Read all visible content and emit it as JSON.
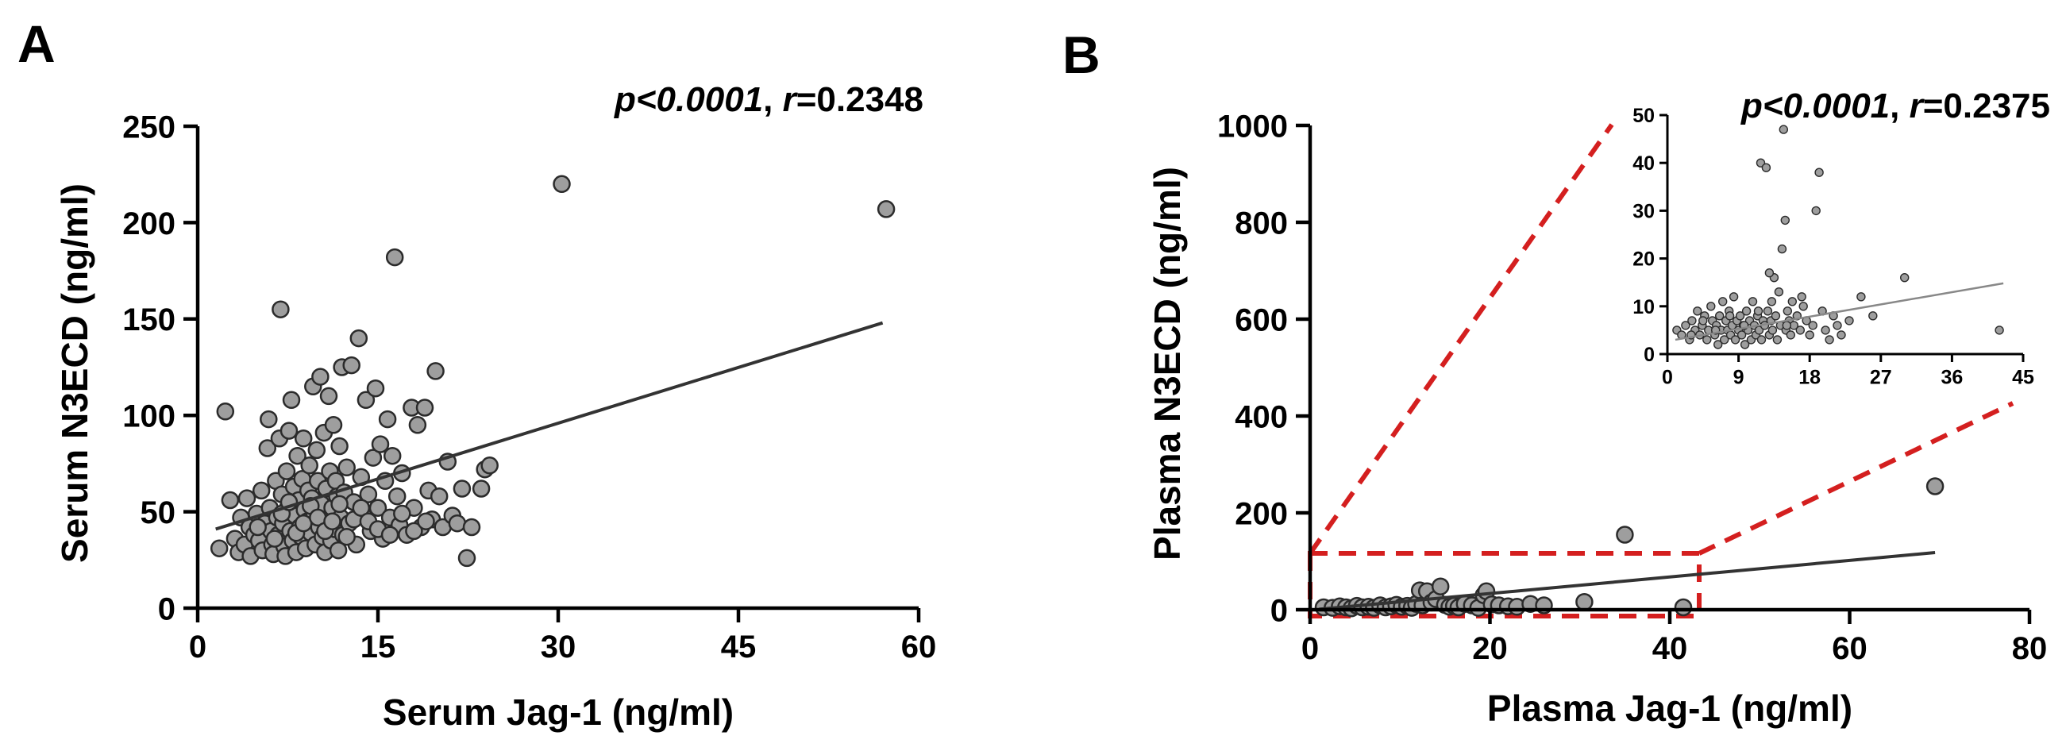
{
  "colors": {
    "point_fill": "#9e9e9e",
    "point_stroke": "#2b2b2b",
    "line": "#333333",
    "zoom_box": "#d41f1f"
  },
  "chart_data": [
    {
      "panel": "A",
      "type": "scatter",
      "xlabel": "Serum Jag-1 (ng/ml)",
      "ylabel": "Serum N3ECD (ng/ml)",
      "stat_p": "p<0.0001",
      "stat_r_label": "r",
      "stat_r_value": "=0.2348",
      "xlim": [
        0,
        60
      ],
      "ylim": [
        0,
        250
      ],
      "xticks": [
        0,
        15,
        30,
        45,
        60
      ],
      "yticks": [
        0,
        50,
        100,
        150,
        200,
        250
      ],
      "trendline": {
        "x": [
          1.5,
          57
        ],
        "y": [
          41,
          148
        ]
      },
      "points": [
        [
          1.8,
          31
        ],
        [
          2.3,
          102
        ],
        [
          2.7,
          56
        ],
        [
          3.1,
          36
        ],
        [
          3.4,
          29
        ],
        [
          3.6,
          47
        ],
        [
          3.9,
          33
        ],
        [
          4.1,
          57
        ],
        [
          4.3,
          42
        ],
        [
          4.4,
          27
        ],
        [
          4.7,
          38
        ],
        [
          4.9,
          49
        ],
        [
          5.1,
          35
        ],
        [
          5.3,
          61
        ],
        [
          5.4,
          30
        ],
        [
          5.6,
          44
        ],
        [
          5.8,
          83
        ],
        [
          5.9,
          98
        ],
        [
          6.0,
          52
        ],
        [
          6.1,
          40
        ],
        [
          6.2,
          33
        ],
        [
          6.3,
          28
        ],
        [
          6.5,
          66
        ],
        [
          6.6,
          47
        ],
        [
          6.7,
          38
        ],
        [
          6.8,
          88
        ],
        [
          6.9,
          155
        ],
        [
          7.0,
          59
        ],
        [
          7.1,
          44
        ],
        [
          7.2,
          32
        ],
        [
          7.3,
          27
        ],
        [
          7.4,
          71
        ],
        [
          7.5,
          52
        ],
        [
          7.6,
          92
        ],
        [
          7.7,
          40
        ],
        [
          7.8,
          108
        ],
        [
          7.9,
          35
        ],
        [
          8.0,
          63
        ],
        [
          8.1,
          48
        ],
        [
          8.2,
          29
        ],
        [
          8.3,
          79
        ],
        [
          8.4,
          56
        ],
        [
          8.5,
          42
        ],
        [
          8.6,
          37
        ],
        [
          8.7,
          67
        ],
        [
          8.8,
          88
        ],
        [
          8.9,
          51
        ],
        [
          9.0,
          31
        ],
        [
          9.1,
          45
        ],
        [
          9.2,
          61
        ],
        [
          9.3,
          74
        ],
        [
          9.4,
          39
        ],
        [
          9.5,
          57
        ],
        [
          9.6,
          115
        ],
        [
          9.7,
          48
        ],
        [
          9.8,
          33
        ],
        [
          9.9,
          82
        ],
        [
          10.0,
          66
        ],
        [
          10.1,
          42
        ],
        [
          10.2,
          120
        ],
        [
          10.3,
          54
        ],
        [
          10.4,
          37
        ],
        [
          10.5,
          91
        ],
        [
          10.6,
          29
        ],
        [
          10.7,
          62
        ],
        [
          10.8,
          46
        ],
        [
          10.9,
          110
        ],
        [
          11.0,
          71
        ],
        [
          11.1,
          35
        ],
        [
          11.2,
          52
        ],
        [
          11.3,
          95
        ],
        [
          11.4,
          41
        ],
        [
          11.5,
          66
        ],
        [
          11.6,
          58
        ],
        [
          11.7,
          30
        ],
        [
          11.8,
          84
        ],
        [
          11.9,
          47
        ],
        [
          12.0,
          125
        ],
        [
          12.1,
          38
        ],
        [
          12.2,
          60
        ],
        [
          12.4,
          73
        ],
        [
          12.6,
          44
        ],
        [
          12.8,
          126
        ],
        [
          13.0,
          55
        ],
        [
          13.2,
          33
        ],
        [
          13.4,
          140
        ],
        [
          13.6,
          68
        ],
        [
          13.8,
          48
        ],
        [
          14.0,
          108
        ],
        [
          14.2,
          59
        ],
        [
          14.4,
          40
        ],
        [
          14.6,
          78
        ],
        [
          14.8,
          114
        ],
        [
          15.0,
          52
        ],
        [
          15.2,
          85
        ],
        [
          15.4,
          36
        ],
        [
          15.6,
          66
        ],
        [
          15.8,
          98
        ],
        [
          16.0,
          47
        ],
        [
          16.2,
          79
        ],
        [
          16.4,
          182
        ],
        [
          16.6,
          58
        ],
        [
          16.8,
          43
        ],
        [
          17.0,
          70
        ],
        [
          17.4,
          38
        ],
        [
          17.8,
          104
        ],
        [
          18.0,
          52
        ],
        [
          18.3,
          95
        ],
        [
          18.6,
          42
        ],
        [
          18.9,
          104
        ],
        [
          19.2,
          61
        ],
        [
          19.5,
          46
        ],
        [
          19.8,
          123
        ],
        [
          20.1,
          58
        ],
        [
          20.4,
          42
        ],
        [
          20.8,
          76
        ],
        [
          21.2,
          48
        ],
        [
          21.6,
          44
        ],
        [
          22.0,
          62
        ],
        [
          22.4,
          26
        ],
        [
          22.8,
          42
        ],
        [
          23.6,
          62
        ],
        [
          23.9,
          72
        ],
        [
          24.3,
          74
        ],
        [
          30.3,
          220
        ],
        [
          57.3,
          207
        ],
        [
          5.0,
          42
        ],
        [
          6.4,
          36
        ],
        [
          7.0,
          49
        ],
        [
          7.6,
          55
        ],
        [
          8.2,
          39
        ],
        [
          8.8,
          44
        ],
        [
          9.4,
          53
        ],
        [
          10.0,
          47
        ],
        [
          10.6,
          40
        ],
        [
          11.2,
          45
        ],
        [
          11.8,
          54
        ],
        [
          12.4,
          37
        ],
        [
          13.0,
          46
        ],
        [
          13.6,
          52
        ],
        [
          14.2,
          45
        ],
        [
          15.0,
          41
        ],
        [
          16.0,
          38
        ],
        [
          17.0,
          49
        ],
        [
          18.0,
          40
        ],
        [
          19.0,
          45
        ]
      ]
    },
    {
      "panel": "B",
      "type": "scatter",
      "xlabel": "Plasma Jag-1 (ng/ml)",
      "ylabel": "Plasma N3ECD (ng/ml)",
      "stat_p": "p<0.0001",
      "stat_r_label": "r",
      "stat_r_value": "=0.2375",
      "xlim": [
        0,
        80
      ],
      "ylim": [
        0,
        1000
      ],
      "xticks": [
        0,
        20,
        40,
        60,
        80
      ],
      "yticks": [
        0,
        200,
        400,
        600,
        800,
        1000
      ],
      "trendline": {
        "x": [
          1,
          69.5
        ],
        "y": [
          1,
          118
        ]
      },
      "points": [
        [
          1.5,
          5
        ],
        [
          2.5,
          4
        ],
        [
          3.3,
          7
        ],
        [
          4.0,
          5
        ],
        [
          4.6,
          3
        ],
        [
          5.2,
          8
        ],
        [
          5.8,
          5
        ],
        [
          6.5,
          6
        ],
        [
          7.1,
          4
        ],
        [
          7.8,
          9
        ],
        [
          8.4,
          5
        ],
        [
          9.0,
          7
        ],
        [
          9.6,
          10
        ],
        [
          10.2,
          6
        ],
        [
          10.8,
          8
        ],
        [
          11.3,
          4
        ],
        [
          11.8,
          12
        ],
        [
          12.2,
          40
        ],
        [
          12.5,
          9
        ],
        [
          13.0,
          38
        ],
        [
          13.5,
          15
        ],
        [
          14.0,
          22
        ],
        [
          14.5,
          48
        ],
        [
          15.0,
          10
        ],
        [
          15.5,
          6
        ],
        [
          16.0,
          8
        ],
        [
          16.5,
          5
        ],
        [
          17.2,
          12
        ],
        [
          18.0,
          9
        ],
        [
          18.7,
          4
        ],
        [
          19.3,
          30
        ],
        [
          19.6,
          38
        ],
        [
          20.2,
          11
        ],
        [
          21.0,
          9
        ],
        [
          22.0,
          7
        ],
        [
          23.0,
          6
        ],
        [
          24.5,
          12
        ],
        [
          26.0,
          9
        ],
        [
          30.5,
          16
        ],
        [
          35.0,
          155
        ],
        [
          41.5,
          5
        ],
        [
          69.5,
          255
        ]
      ],
      "inset": {
        "xlim": [
          0,
          45
        ],
        "ylim": [
          0,
          50
        ],
        "xticks": [
          0,
          9,
          18,
          27,
          36,
          45
        ],
        "yticks": [
          0,
          10,
          20,
          30,
          40,
          50
        ],
        "trendline": {
          "x": [
            1,
            42.5
          ],
          "y": [
            3,
            14.8
          ]
        },
        "points": [
          [
            1.2,
            5
          ],
          [
            1.8,
            4
          ],
          [
            2.3,
            6
          ],
          [
            2.8,
            3
          ],
          [
            3.1,
            7
          ],
          [
            3.5,
            5
          ],
          [
            3.8,
            9
          ],
          [
            4.1,
            4
          ],
          [
            4.4,
            6
          ],
          [
            4.7,
            8
          ],
          [
            5.0,
            3
          ],
          [
            5.2,
            5
          ],
          [
            5.5,
            10
          ],
          [
            5.7,
            7
          ],
          [
            6.0,
            4
          ],
          [
            6.2,
            6
          ],
          [
            6.4,
            2
          ],
          [
            6.6,
            8
          ],
          [
            6.8,
            5
          ],
          [
            7.0,
            11
          ],
          [
            7.2,
            3
          ],
          [
            7.4,
            7
          ],
          [
            7.6,
            5
          ],
          [
            7.8,
            9
          ],
          [
            8.0,
            4
          ],
          [
            8.2,
            6
          ],
          [
            8.4,
            12
          ],
          [
            8.6,
            3
          ],
          [
            8.8,
            7
          ],
          [
            9.0,
            5
          ],
          [
            9.2,
            8
          ],
          [
            9.4,
            4
          ],
          [
            9.6,
            6
          ],
          [
            9.8,
            2
          ],
          [
            10.0,
            9
          ],
          [
            10.2,
            5
          ],
          [
            10.4,
            7
          ],
          [
            10.6,
            3
          ],
          [
            10.8,
            11
          ],
          [
            11.0,
            6
          ],
          [
            11.2,
            4
          ],
          [
            11.4,
            8
          ],
          [
            11.6,
            5
          ],
          [
            11.8,
            40
          ],
          [
            11.9,
            3
          ],
          [
            12.1,
            7
          ],
          [
            12.3,
            6
          ],
          [
            12.5,
            39
          ],
          [
            12.7,
            9
          ],
          [
            12.9,
            4
          ],
          [
            13.1,
            7
          ],
          [
            13.3,
            5
          ],
          [
            13.5,
            16
          ],
          [
            13.7,
            8
          ],
          [
            13.9,
            3
          ],
          [
            14.1,
            13
          ],
          [
            14.3,
            6
          ],
          [
            14.5,
            22
          ],
          [
            14.7,
            47
          ],
          [
            14.9,
            28
          ],
          [
            15.0,
            5
          ],
          [
            15.2,
            9
          ],
          [
            15.4,
            7
          ],
          [
            15.6,
            4
          ],
          [
            15.8,
            11
          ],
          [
            16.0,
            6
          ],
          [
            16.4,
            8
          ],
          [
            16.8,
            5
          ],
          [
            17.2,
            10
          ],
          [
            17.6,
            7
          ],
          [
            18.0,
            4
          ],
          [
            18.4,
            6
          ],
          [
            18.8,
            30
          ],
          [
            19.2,
            38
          ],
          [
            19.6,
            9
          ],
          [
            20.0,
            5
          ],
          [
            20.5,
            3
          ],
          [
            21.0,
            8
          ],
          [
            21.5,
            6
          ],
          [
            22.0,
            4
          ],
          [
            23.0,
            7
          ],
          [
            24.5,
            12
          ],
          [
            26.0,
            8
          ],
          [
            30.0,
            16
          ],
          [
            42.0,
            5
          ],
          [
            3.0,
            4
          ],
          [
            4.5,
            7
          ],
          [
            6.1,
            5
          ],
          [
            7.9,
            8
          ],
          [
            9.7,
            6
          ],
          [
            11.5,
            9
          ],
          [
            13.2,
            11
          ],
          [
            15.1,
            6
          ],
          [
            17.0,
            12
          ],
          [
            12.9,
            17
          ]
        ]
      }
    }
  ]
}
